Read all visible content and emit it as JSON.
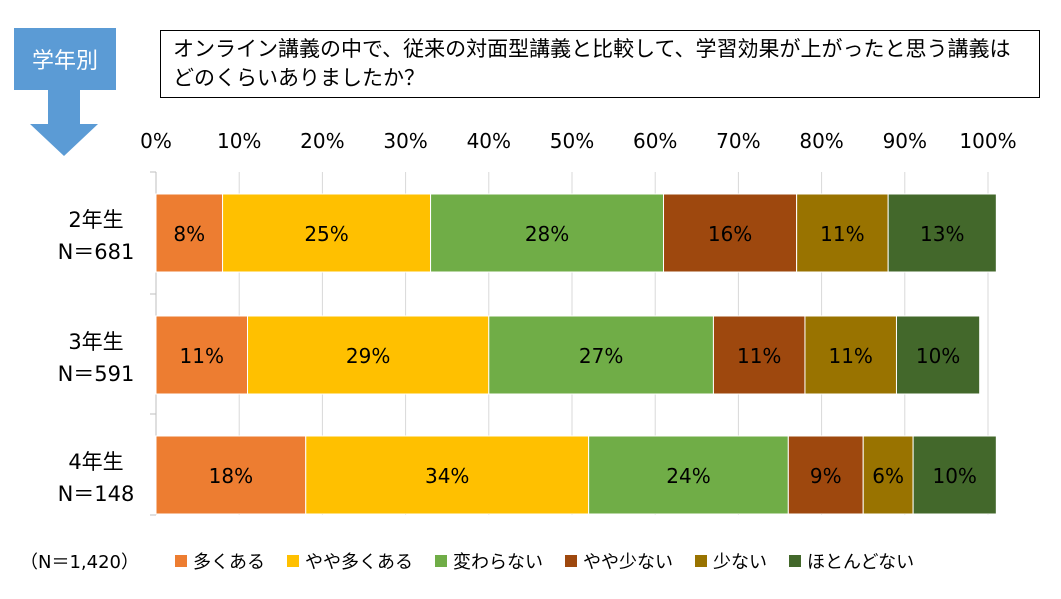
{
  "header": {
    "tag": "学年別",
    "question": "オンライン講義の中で、従来の対面型講義と比較して、学習効果が上がったと思う講義はどのくらいありましたか？"
  },
  "legend_note": "（N＝1,420）",
  "colors": [
    "#ed7d31",
    "#ffc000",
    "#70ad47",
    "#9e480e",
    "#997300",
    "#43682b"
  ],
  "chart_data": {
    "type": "bar",
    "orientation": "horizontal",
    "stacked": true,
    "xlim": [
      0,
      100
    ],
    "x_ticks": [
      "0%",
      "10%",
      "20%",
      "30%",
      "40%",
      "50%",
      "60%",
      "70%",
      "80%",
      "90%",
      "100%"
    ],
    "categories": [
      {
        "label": "2年生",
        "n": "N＝681"
      },
      {
        "label": "3年生",
        "n": "N＝591"
      },
      {
        "label": "4年生",
        "n": "N＝148"
      }
    ],
    "series": [
      {
        "name": "多くある",
        "values": [
          8,
          11,
          18
        ],
        "labels": [
          "8%",
          "11%",
          "18%"
        ]
      },
      {
        "name": "やや多くある",
        "values": [
          25,
          29,
          34
        ],
        "labels": [
          "25%",
          "29%",
          "34%"
        ]
      },
      {
        "name": "変わらない",
        "values": [
          28,
          27,
          24
        ],
        "labels": [
          "28%",
          "27%",
          "24%"
        ]
      },
      {
        "name": "やや少ない",
        "values": [
          16,
          11,
          9
        ],
        "labels": [
          "16%",
          "11%",
          "9%"
        ]
      },
      {
        "name": "少ない",
        "values": [
          11,
          11,
          6
        ],
        "labels": [
          "11%",
          "11%",
          "6%"
        ]
      },
      {
        "name": "ほとんどない",
        "values": [
          13,
          10,
          10
        ],
        "labels": [
          "13%",
          "10%",
          "10%"
        ]
      }
    ],
    "grid": true,
    "legend_position": "bottom"
  }
}
